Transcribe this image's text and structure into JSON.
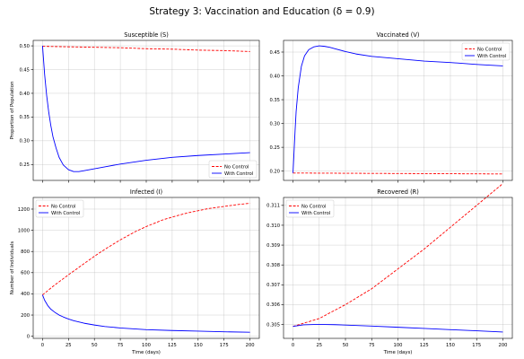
{
  "figure": {
    "title": "Strategy 3: Vaccination and Education (δ = 0.9)"
  },
  "colors": {
    "no_control": "#ff0000",
    "with_control": "#0000ff",
    "grid": "#b0b0b0"
  },
  "chart_data": [
    {
      "type": "line",
      "title": "Susceptible (S)",
      "xlabel": "",
      "ylabel": "Proportion of Population",
      "xlim": [
        -9,
        209
      ],
      "ylim": [
        0.2165,
        0.5115
      ],
      "xticks": [
        0,
        25,
        50,
        75,
        100,
        125,
        150,
        175,
        200
      ],
      "show_xticklabels": false,
      "yticks": [
        0.25,
        0.3,
        0.35,
        0.4,
        0.45,
        0.5
      ],
      "ytick_labels": [
        "0.25",
        "0.30",
        "0.35",
        "0.40",
        "0.45",
        "0.50"
      ],
      "grid": true,
      "legend": {
        "position": "bottom-right",
        "entries": [
          "No Control",
          "With Control"
        ]
      },
      "series": [
        {
          "name": "No Control",
          "style": "dashed",
          "x": [
            0,
            25,
            50,
            75,
            100,
            125,
            150,
            175,
            200
          ],
          "y": [
            0.499,
            0.498,
            0.497,
            0.496,
            0.494,
            0.493,
            0.491,
            0.49,
            0.488
          ]
        },
        {
          "name": "With Control",
          "style": "solid",
          "x": [
            0,
            1,
            2,
            4,
            6,
            8,
            10,
            13,
            16,
            20,
            25,
            30,
            35,
            40,
            50,
            60,
            75,
            100,
            125,
            150,
            175,
            200
          ],
          "y": [
            0.5,
            0.47,
            0.44,
            0.395,
            0.36,
            0.332,
            0.309,
            0.285,
            0.265,
            0.249,
            0.239,
            0.235,
            0.235,
            0.237,
            0.241,
            0.245,
            0.251,
            0.259,
            0.265,
            0.269,
            0.272,
            0.275
          ]
        }
      ]
    },
    {
      "type": "line",
      "title": "Vaccinated (V)",
      "xlabel": "",
      "ylabel": "",
      "xlim": [
        -9,
        209
      ],
      "ylim": [
        0.1805,
        0.4745
      ],
      "xticks": [
        0,
        25,
        50,
        75,
        100,
        125,
        150,
        175,
        200
      ],
      "show_xticklabels": false,
      "yticks": [
        0.2,
        0.25,
        0.3,
        0.35,
        0.4,
        0.45
      ],
      "ytick_labels": [
        "0.20",
        "0.25",
        "0.30",
        "0.35",
        "0.40",
        "0.45"
      ],
      "grid": true,
      "legend": {
        "position": "top-right",
        "entries": [
          "No Control",
          "With Control"
        ]
      },
      "series": [
        {
          "name": "No Control",
          "style": "dashed",
          "x": [
            0,
            50,
            100,
            150,
            200
          ],
          "y": [
            0.196,
            0.1955,
            0.195,
            0.1945,
            0.194
          ]
        },
        {
          "name": "With Control",
          "style": "solid",
          "x": [
            0,
            1,
            2,
            3,
            5,
            8,
            11,
            15,
            20,
            25,
            30,
            35,
            40,
            50,
            60,
            75,
            100,
            125,
            150,
            175,
            200
          ],
          "y": [
            0.196,
            0.24,
            0.285,
            0.325,
            0.375,
            0.42,
            0.442,
            0.455,
            0.461,
            0.463,
            0.462,
            0.46,
            0.457,
            0.451,
            0.446,
            0.441,
            0.436,
            0.431,
            0.428,
            0.424,
            0.421
          ]
        }
      ]
    },
    {
      "type": "line",
      "title": "Infected (I)",
      "xlabel": "Time (days)",
      "ylabel": "Number of Individuals",
      "xlim": [
        -9,
        209
      ],
      "ylim": [
        -20,
        1310
      ],
      "xticks": [
        0,
        25,
        50,
        75,
        100,
        125,
        150,
        175,
        200
      ],
      "show_xticklabels": true,
      "yticks": [
        0,
        200,
        400,
        600,
        800,
        1000,
        1200
      ],
      "ytick_labels": [
        "0",
        "200",
        "400",
        "600",
        "800",
        "1000",
        "1200"
      ],
      "grid": true,
      "legend": {
        "position": "top-left",
        "entries": [
          "No Control",
          "With Control"
        ]
      },
      "series": [
        {
          "name": "No Control",
          "style": "dashed",
          "x": [
            0,
            10,
            25,
            40,
            50,
            60,
            75,
            90,
            100,
            115,
            125,
            140,
            150,
            160,
            175,
            190,
            200
          ],
          "y": [
            390,
            470,
            580,
            685,
            755,
            820,
            910,
            990,
            1035,
            1095,
            1125,
            1165,
            1185,
            1205,
            1225,
            1245,
            1255
          ]
        },
        {
          "name": "With Control",
          "style": "solid",
          "x": [
            0,
            2,
            5,
            8,
            12,
            16,
            20,
            25,
            30,
            40,
            50,
            60,
            75,
            100,
            125,
            150,
            175,
            200
          ],
          "y": [
            390,
            340,
            290,
            255,
            225,
            200,
            182,
            163,
            147,
            123,
            106,
            92,
            78,
            62,
            54,
            48,
            42,
            38
          ]
        }
      ]
    },
    {
      "type": "line",
      "title": "Recovered (R)",
      "xlabel": "Time (days)",
      "ylabel": "",
      "xlim": [
        -9,
        209
      ],
      "ylim": [
        0.3043,
        0.3114
      ],
      "xticks": [
        0,
        25,
        50,
        75,
        100,
        125,
        150,
        175,
        200
      ],
      "show_xticklabels": true,
      "yticks": [
        0.305,
        0.306,
        0.307,
        0.308,
        0.309,
        0.31,
        0.311
      ],
      "ytick_labels": [
        "0.305",
        "0.306",
        "0.307",
        "0.308",
        "0.309",
        "0.310",
        "0.311"
      ],
      "grid": true,
      "legend": {
        "position": "top-left",
        "entries": [
          "No Control",
          "With Control"
        ]
      },
      "series": [
        {
          "name": "No Control",
          "style": "dashed",
          "x": [
            0,
            25,
            50,
            75,
            100,
            125,
            150,
            175,
            200
          ],
          "y": [
            0.3049,
            0.3053,
            0.306,
            0.3068,
            0.3078,
            0.3088,
            0.3099,
            0.311,
            0.3121
          ]
        },
        {
          "name": "With Control",
          "style": "solid",
          "x": [
            0,
            10,
            20,
            30,
            40,
            50,
            75,
            100,
            125,
            150,
            175,
            200
          ],
          "y": [
            0.3049,
            0.30498,
            0.305,
            0.305,
            0.30499,
            0.30497,
            0.30492,
            0.30486,
            0.3048,
            0.30474,
            0.30468,
            0.30462
          ]
        }
      ]
    }
  ]
}
